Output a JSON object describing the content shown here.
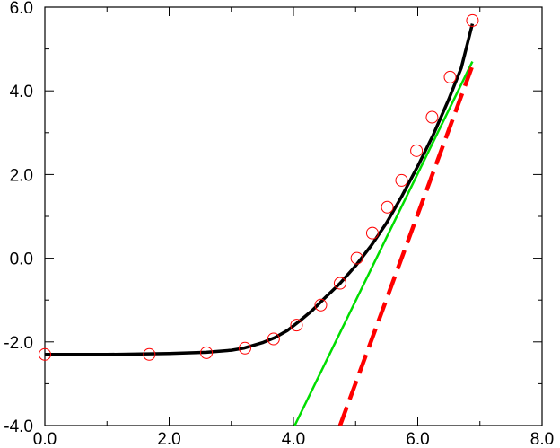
{
  "chart_data": {
    "type": "line",
    "title": "",
    "xlabel": "",
    "ylabel": "",
    "xlim": [
      0.0,
      8.0
    ],
    "ylim": [
      -4.0,
      6.0
    ],
    "x_ticks": [
      {
        "value": 0.0,
        "label": "0.0"
      },
      {
        "value": 2.0,
        "label": "2.0"
      },
      {
        "value": 4.0,
        "label": "4.0"
      },
      {
        "value": 6.0,
        "label": "6.0"
      },
      {
        "value": 8.0,
        "label": "8.0"
      }
    ],
    "y_ticks": [
      {
        "value": -4.0,
        "label": "-4.0"
      },
      {
        "value": -2.0,
        "label": "-2.0"
      },
      {
        "value": 0.0,
        "label": "0.0"
      },
      {
        "value": 2.0,
        "label": "2.0"
      },
      {
        "value": 4.0,
        "label": "4.0"
      },
      {
        "value": 6.0,
        "label": "6.0"
      }
    ],
    "x_minor_step": 1.0,
    "y_minor_step": 1.0,
    "grid": false,
    "legend": "none",
    "series": [
      {
        "style": "solid",
        "color": "#000000",
        "points": [
          [
            0.0,
            -2.3
          ],
          [
            1.0,
            -2.3
          ],
          [
            2.0,
            -2.28
          ],
          [
            2.6,
            -2.25
          ],
          [
            3.0,
            -2.2
          ],
          [
            3.2,
            -2.15
          ],
          [
            3.5,
            -2.02
          ],
          [
            3.7,
            -1.9
          ],
          [
            3.9,
            -1.73
          ],
          [
            4.1,
            -1.5
          ],
          [
            4.3,
            -1.25
          ],
          [
            4.5,
            -0.96
          ],
          [
            4.75,
            -0.6
          ],
          [
            5.0,
            -0.18
          ],
          [
            5.25,
            0.3
          ],
          [
            5.5,
            0.85
          ],
          [
            5.75,
            1.5
          ],
          [
            6.0,
            2.2
          ],
          [
            6.25,
            2.95
          ],
          [
            6.5,
            3.8
          ],
          [
            6.7,
            4.55
          ],
          [
            6.88,
            5.6
          ]
        ]
      },
      {
        "style": "markers",
        "color": "#ff0000",
        "marker": "open-circle",
        "points": [
          [
            0.0,
            -2.3
          ],
          [
            1.68,
            -2.3
          ],
          [
            2.6,
            -2.26
          ],
          [
            3.22,
            -2.15
          ],
          [
            3.68,
            -1.93
          ],
          [
            4.05,
            -1.6
          ],
          [
            4.44,
            -1.12
          ],
          [
            4.75,
            -0.6
          ],
          [
            5.02,
            0.0
          ],
          [
            5.27,
            0.6
          ],
          [
            5.51,
            1.22
          ],
          [
            5.74,
            1.86
          ],
          [
            5.98,
            2.57
          ],
          [
            6.23,
            3.37
          ],
          [
            6.52,
            4.33
          ],
          [
            6.88,
            5.68
          ]
        ]
      },
      {
        "style": "solid",
        "color": "#00dd00",
        "points": [
          [
            4.02,
            -4.0
          ],
          [
            6.88,
            4.7
          ]
        ]
      },
      {
        "style": "dashed",
        "color": "#ff0000",
        "points": [
          [
            4.75,
            -4.0
          ],
          [
            6.88,
            4.6
          ]
        ]
      }
    ]
  },
  "colors": {
    "background": "#ffffff",
    "axis": "#000000"
  }
}
